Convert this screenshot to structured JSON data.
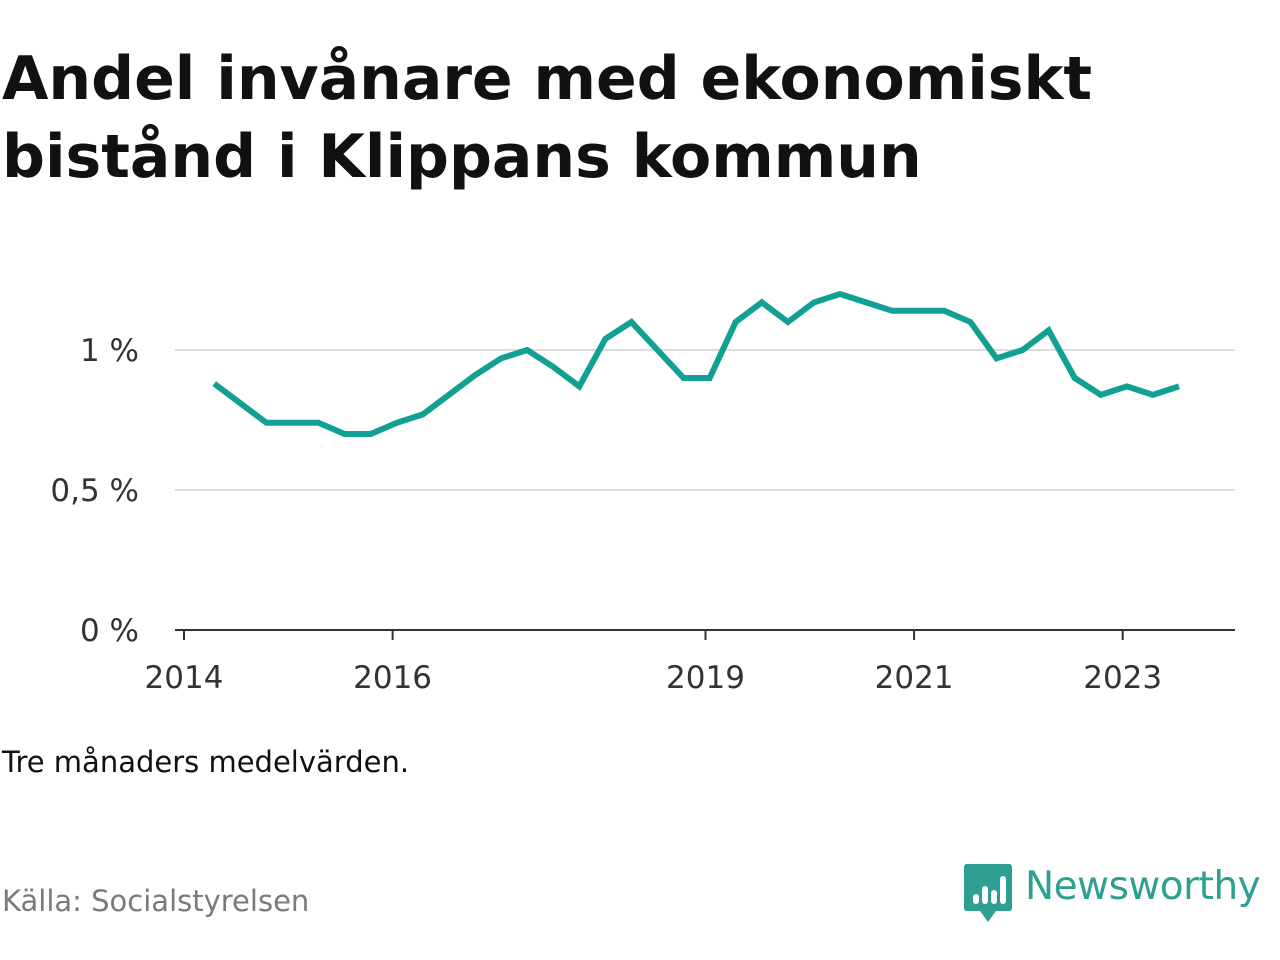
{
  "title": "Andel invånare med ekonomiskt bistånd i Klippans kommun",
  "note": "Tre månaders medelvärden.",
  "source": "Källa: Socialstyrelsen",
  "brand": {
    "name": "Newsworthy",
    "color": "#2f9f92",
    "icon": "bar-chart-speech-bubble-icon"
  },
  "chart_data": {
    "type": "line",
    "title": "Andel invånare med ekonomiskt bistånd i Klippans kommun",
    "xlabel": "",
    "ylabel": "",
    "xlim": [
      2014.0,
      2024.2
    ],
    "ylim": [
      0,
      1.25
    ],
    "x_ticks": [
      {
        "value": 2014,
        "label": "2014"
      },
      {
        "value": 2016,
        "label": "2016"
      },
      {
        "value": 2019,
        "label": "2019"
      },
      {
        "value": 2021,
        "label": "2021"
      },
      {
        "value": 2023,
        "label": "2023"
      }
    ],
    "y_ticks": [
      {
        "value": 0,
        "label": "0 %"
      },
      {
        "value": 0.5,
        "label": "0,5 %"
      },
      {
        "value": 1,
        "label": "1 %"
      }
    ],
    "grid": "horizontal",
    "line_color": "#12a093",
    "series": [
      {
        "values": [
          [
            2014.29,
            0.88
          ],
          [
            2014.54,
            0.81
          ],
          [
            2014.79,
            0.74
          ],
          [
            2015.04,
            0.74
          ],
          [
            2015.29,
            0.74
          ],
          [
            2015.54,
            0.7
          ],
          [
            2015.79,
            0.7
          ],
          [
            2016.04,
            0.74
          ],
          [
            2016.29,
            0.77
          ],
          [
            2016.54,
            0.84
          ],
          [
            2016.79,
            0.91
          ],
          [
            2017.04,
            0.97
          ],
          [
            2017.29,
            1.0
          ],
          [
            2017.54,
            0.94
          ],
          [
            2017.79,
            0.87
          ],
          [
            2018.04,
            1.04
          ],
          [
            2018.29,
            1.1
          ],
          [
            2018.54,
            1.0
          ],
          [
            2018.79,
            0.9
          ],
          [
            2019.04,
            0.9
          ],
          [
            2019.29,
            1.1
          ],
          [
            2019.54,
            1.17
          ],
          [
            2019.79,
            1.1
          ],
          [
            2020.04,
            1.17
          ],
          [
            2020.29,
            1.2
          ],
          [
            2020.54,
            1.17
          ],
          [
            2020.79,
            1.14
          ],
          [
            2021.04,
            1.14
          ],
          [
            2021.29,
            1.14
          ],
          [
            2021.54,
            1.1
          ],
          [
            2021.79,
            0.97
          ],
          [
            2022.04,
            1.0
          ],
          [
            2022.29,
            1.07
          ],
          [
            2022.54,
            0.9
          ],
          [
            2022.79,
            0.84
          ],
          [
            2023.04,
            0.87
          ],
          [
            2023.29,
            0.84
          ],
          [
            2023.54,
            0.87
          ]
        ]
      }
    ]
  }
}
